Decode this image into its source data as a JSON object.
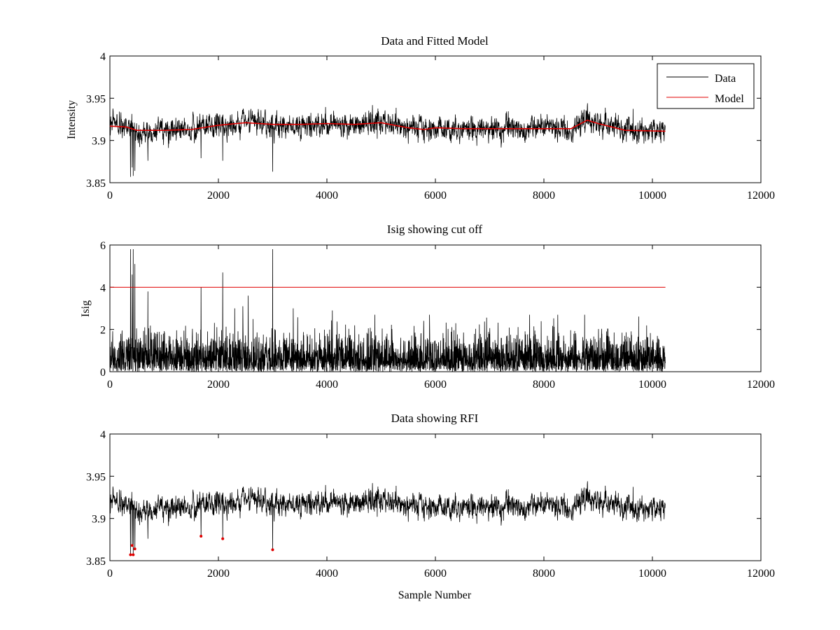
{
  "chart_data": [
    {
      "type": "line",
      "title": "Data and Fitted Model",
      "xlabel": "",
      "ylabel": "Intensity",
      "xlim": [
        0,
        12000
      ],
      "ylim": [
        3.85,
        4
      ],
      "xticks": [
        0,
        2000,
        4000,
        6000,
        8000,
        10000,
        12000
      ],
      "xtick_labels": [
        "0",
        "2000",
        "4000",
        "6000",
        "8000",
        "10000",
        "12000"
      ],
      "yticks": [
        3.85,
        3.9,
        3.95,
        4
      ],
      "ytick_labels": [
        "3.85",
        "3.9",
        "3.95",
        "4"
      ],
      "legend": {
        "position": "top-right",
        "entries": [
          {
            "label": "Data",
            "color": "#000000"
          },
          {
            "label": "Model",
            "color": "#e00000"
          }
        ]
      },
      "series": [
        {
          "name": "Data",
          "color": "#000000",
          "kind": "noisy-signal",
          "x_range": [
            0,
            10240
          ],
          "n_samples": 10240,
          "noise_std": 0.0085,
          "baseline": [
            [
              0,
              3.921
            ],
            [
              300,
              3.916
            ],
            [
              500,
              3.911
            ],
            [
              1000,
              3.911
            ],
            [
              1500,
              3.912
            ],
            [
              2000,
              3.918
            ],
            [
              2500,
              3.921
            ],
            [
              3000,
              3.918
            ],
            [
              3500,
              3.918
            ],
            [
              4000,
              3.92
            ],
            [
              4500,
              3.918
            ],
            [
              5000,
              3.921
            ],
            [
              5500,
              3.915
            ],
            [
              5800,
              3.913
            ],
            [
              6000,
              3.915
            ],
            [
              6500,
              3.914
            ],
            [
              7000,
              3.914
            ],
            [
              7500,
              3.914
            ],
            [
              8000,
              3.914
            ],
            [
              8500,
              3.914
            ],
            [
              8800,
              3.924
            ],
            [
              9000,
              3.92
            ],
            [
              9500,
              3.912
            ],
            [
              10240,
              3.911
            ]
          ],
          "spikes": [
            [
              380,
              3.857
            ],
            [
              410,
              3.868
            ],
            [
              430,
              3.858
            ],
            [
              460,
              3.864
            ],
            [
              700,
              3.876
            ],
            [
              1680,
              3.879
            ],
            [
              2080,
              3.876
            ],
            [
              3000,
              3.863
            ]
          ]
        },
        {
          "name": "Model",
          "color": "#e00000",
          "x": [
            0,
            300,
            500,
            1000,
            1500,
            2000,
            2500,
            3000,
            3500,
            4000,
            4500,
            5000,
            5500,
            5800,
            6000,
            6500,
            7000,
            7500,
            8000,
            8500,
            8800,
            9000,
            9500,
            10240
          ],
          "y": [
            3.917,
            3.916,
            3.912,
            3.912,
            3.913,
            3.918,
            3.921,
            3.919,
            3.919,
            3.92,
            3.919,
            3.921,
            3.915,
            3.913,
            3.915,
            3.914,
            3.914,
            3.914,
            3.914,
            3.914,
            3.924,
            3.92,
            3.912,
            3.911
          ]
        }
      ]
    },
    {
      "type": "line",
      "title": "Isig showing cut off",
      "xlabel": "",
      "ylabel": "Isig",
      "xlim": [
        0,
        12000
      ],
      "ylim": [
        0,
        6
      ],
      "xticks": [
        0,
        2000,
        4000,
        6000,
        8000,
        10000,
        12000
      ],
      "xtick_labels": [
        "0",
        "2000",
        "4000",
        "6000",
        "8000",
        "10000",
        "12000"
      ],
      "yticks": [
        0,
        2,
        4,
        6
      ],
      "ytick_labels": [
        "0",
        "2",
        "4",
        "6"
      ],
      "series": [
        {
          "name": "Isig",
          "color": "#000000",
          "kind": "abs-noise",
          "x_range": [
            0,
            10240
          ],
          "n_samples": 10240,
          "noise_std": 0.85,
          "spikes": [
            [
              380,
              5.8
            ],
            [
              410,
              4.6
            ],
            [
              430,
              5.8
            ],
            [
              460,
              5.1
            ],
            [
              700,
              3.8
            ],
            [
              1680,
              4.0
            ],
            [
              2080,
              4.7
            ],
            [
              2300,
              3.0
            ],
            [
              2450,
              3.1
            ],
            [
              2550,
              3.6
            ],
            [
              3000,
              5.8
            ],
            [
              3380,
              3.0
            ],
            [
              4100,
              2.9
            ]
          ]
        },
        {
          "name": "Cut off",
          "color": "#e00000",
          "x": [
            0,
            10240
          ],
          "y": [
            4,
            4
          ]
        }
      ]
    },
    {
      "type": "line",
      "title": "Data showing RFI",
      "xlabel": "Sample Number",
      "ylabel": "",
      "xlim": [
        0,
        12000
      ],
      "ylim": [
        3.85,
        4
      ],
      "xticks": [
        0,
        2000,
        4000,
        6000,
        8000,
        10000,
        12000
      ],
      "xtick_labels": [
        "0",
        "2000",
        "4000",
        "6000",
        "8000",
        "10000",
        "12000"
      ],
      "yticks": [
        3.85,
        3.9,
        3.95,
        4
      ],
      "ytick_labels": [
        "3.85",
        "3.9",
        "3.95",
        "4"
      ],
      "series": [
        {
          "name": "Data",
          "color": "#000000",
          "kind": "same-as-panel-1-data"
        },
        {
          "name": "RFI",
          "color": "#e00000",
          "kind": "markers",
          "x": [
            380,
            410,
            430,
            460,
            1680,
            2080,
            3000
          ],
          "y": [
            3.857,
            3.868,
            3.857,
            3.864,
            3.879,
            3.876,
            3.863
          ]
        }
      ]
    }
  ]
}
